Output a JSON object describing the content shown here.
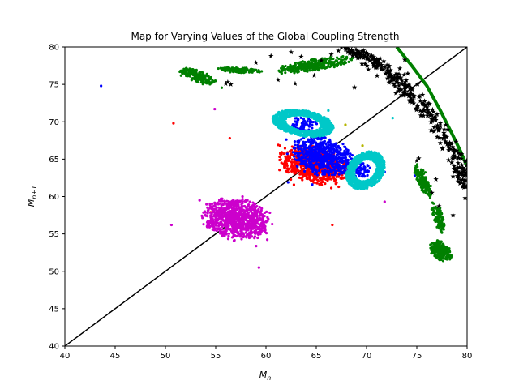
{
  "chart_data": {
    "type": "scatter",
    "title": "Map for Varying Values of the Global Coupling Strength",
    "xlabel": "M",
    "xlabel_sub": "n",
    "ylabel": "M",
    "ylabel_sub": "n+1",
    "xlim": [
      40,
      80
    ],
    "ylim": [
      40,
      80
    ],
    "xticks": [
      40,
      45,
      50,
      55,
      60,
      65,
      70,
      75,
      80
    ],
    "yticks": [
      40,
      45,
      50,
      55,
      60,
      65,
      70,
      75,
      80
    ],
    "grid": false,
    "legend": "none",
    "identity_line": {
      "from": [
        40,
        40
      ],
      "to": [
        80,
        80
      ],
      "color": "#000000"
    },
    "series": [
      {
        "color": "#ff0000",
        "marker": "dot",
        "clusters": [
          {
            "cx": 64.8,
            "cy": 64.2,
            "rx": 3.6,
            "ry": 2.3,
            "rot": -25,
            "n": 700
          }
        ],
        "points": [
          [
            50.8,
            69.8
          ],
          [
            56.4,
            67.8
          ],
          [
            66.6,
            56.2
          ],
          [
            54.5,
            57.9
          ],
          [
            61.4,
            66.8
          ]
        ]
      },
      {
        "color": "#0000ff",
        "marker": "dot",
        "clusters": [
          {
            "cx": 65.6,
            "cy": 65.4,
            "rx": 3.2,
            "ry": 2.4,
            "rot": -30,
            "n": 650
          },
          {
            "cx": 63.7,
            "cy": 69.7,
            "rx": 1.3,
            "ry": 0.9,
            "rot": 0,
            "n": 60
          },
          {
            "cx": 69.5,
            "cy": 63.6,
            "rx": 0.9,
            "ry": 1.2,
            "rot": 0,
            "n": 60
          }
        ],
        "points": [
          [
            43.6,
            74.8
          ],
          [
            62.2,
            61.9
          ],
          [
            74.8,
            62.8
          ],
          [
            64.6,
            61.6
          ],
          [
            71.8,
            63.3
          ]
        ]
      },
      {
        "color": "#00c8c8",
        "marker": "dot",
        "rings": [
          {
            "cx": 63.7,
            "cy": 69.8,
            "rx": 3.1,
            "ry": 1.7,
            "rot": -15,
            "thick": 0.42,
            "n": 900
          },
          {
            "cx": 69.9,
            "cy": 63.5,
            "rx": 1.8,
            "ry": 2.6,
            "rot": -20,
            "thick": 0.42,
            "n": 900
          }
        ],
        "points": [
          [
            72.6,
            70.5
          ],
          [
            66.2,
            71.5
          ]
        ]
      },
      {
        "color": "#cc00cc",
        "marker": "dot",
        "clusters": [
          {
            "cx": 57.1,
            "cy": 57.0,
            "rx": 3.4,
            "ry": 2.6,
            "rot": -20,
            "n": 900
          }
        ],
        "points": [
          [
            54.9,
            71.7
          ],
          [
            50.6,
            56.2
          ],
          [
            59.3,
            50.5
          ],
          [
            71.8,
            59.3
          ],
          [
            53.4,
            59.5
          ]
        ]
      },
      {
        "color": "#008000",
        "marker": "dot",
        "blobs": [
          {
            "cx": 53.2,
            "cy": 76.1,
            "rx": 1.9,
            "ry": 0.75,
            "rot": -28,
            "n": 220
          },
          {
            "cx": 57.4,
            "cy": 76.9,
            "rx": 2.1,
            "ry": 0.35,
            "rot": -4,
            "n": 120
          },
          {
            "cx": 64.8,
            "cy": 77.6,
            "rx": 3.9,
            "ry": 0.75,
            "rot": 12,
            "n": 300
          },
          {
            "cx": 75.6,
            "cy": 62.1,
            "rx": 2.3,
            "ry": 0.55,
            "rot": -72,
            "n": 150
          },
          {
            "cx": 77.1,
            "cy": 57.3,
            "rx": 2.1,
            "ry": 0.45,
            "rot": -78,
            "n": 120
          },
          {
            "cx": 77.4,
            "cy": 52.7,
            "rx": 1.5,
            "ry": 0.85,
            "rot": -62,
            "n": 220
          }
        ],
        "curve": [
          [
            73.0,
            80.0
          ],
          [
            74.5,
            77.5
          ],
          [
            76.0,
            74.8
          ],
          [
            77.3,
            71.6
          ],
          [
            78.5,
            68.4
          ],
          [
            79.4,
            65.9
          ],
          [
            80.0,
            64.0
          ]
        ]
      },
      {
        "color": "#000000",
        "marker": "star",
        "band": [
          [
            68.0,
            79.8
          ],
          [
            70.0,
            78.6
          ],
          [
            72.0,
            76.9
          ],
          [
            74.0,
            74.4
          ],
          [
            76.0,
            71.2
          ],
          [
            78.0,
            67.3
          ],
          [
            79.5,
            63.5
          ],
          [
            80.0,
            61.5
          ]
        ],
        "band_n": 360,
        "points": [
          [
            56.2,
            75.3
          ],
          [
            56.5,
            75.0
          ],
          [
            56.0,
            75.1
          ],
          [
            59.0,
            77.9
          ],
          [
            60.5,
            78.8
          ],
          [
            62.5,
            79.3
          ],
          [
            63.5,
            78.7
          ],
          [
            65.5,
            78.2
          ],
          [
            66.5,
            79.0
          ],
          [
            67.2,
            79.5
          ],
          [
            68.5,
            79.6
          ],
          [
            61.2,
            75.6
          ],
          [
            62.9,
            75.1
          ],
          [
            64.8,
            76.2
          ],
          [
            68.8,
            74.6
          ],
          [
            72.5,
            76.1
          ],
          [
            73.8,
            78.3
          ],
          [
            75.2,
            65.1
          ],
          [
            75.0,
            64.8
          ],
          [
            76.5,
            60.5
          ],
          [
            77.2,
            58.7
          ],
          [
            78.6,
            57.5
          ],
          [
            79.8,
            59.8
          ],
          [
            79.2,
            63.2
          ],
          [
            76.9,
            62.3
          ]
        ]
      },
      {
        "color": "#b5b500",
        "marker": "dot",
        "points": [
          [
            67.9,
            69.6
          ],
          [
            69.6,
            66.8
          ]
        ]
      }
    ]
  }
}
